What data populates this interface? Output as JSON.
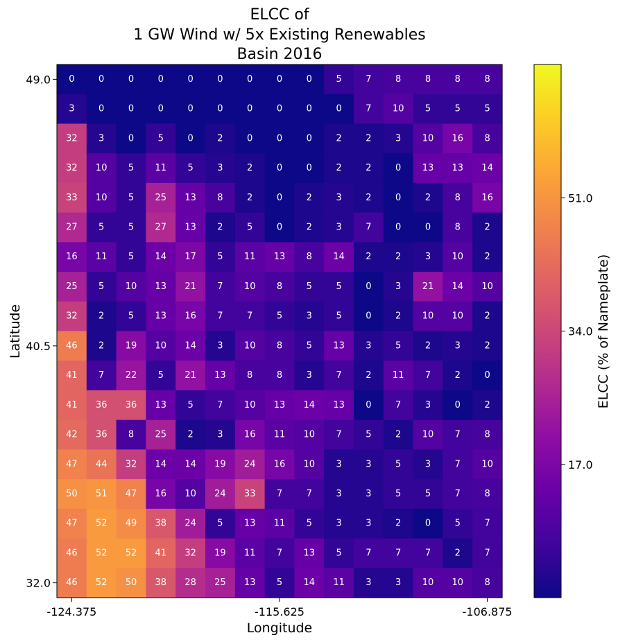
{
  "chart_data": {
    "type": "heatmap",
    "title_lines": [
      "ELCC of",
      "1 GW Wind w/ 5x Existing Renewables",
      "Basin 2016"
    ],
    "xlabel": "Longitude",
    "ylabel": "Latitude",
    "colorbar_label": "ELCC (% of Nameplate)",
    "colormap": "plasma",
    "vmin": 0,
    "vmax": 68,
    "x_ticks": [
      {
        "label": "-124.375",
        "col": 0
      },
      {
        "label": "-115.625",
        "col": 7
      },
      {
        "label": "-106.875",
        "col": 14
      }
    ],
    "y_ticks": [
      {
        "label": "49.0",
        "row": 0
      },
      {
        "label": "40.5",
        "row": 9
      },
      {
        "label": "32.0",
        "row": 17
      }
    ],
    "colorbar_ticks": [
      {
        "label": "17.0",
        "value": 17
      },
      {
        "label": "34.0",
        "value": 34
      },
      {
        "label": "51.0",
        "value": 51
      }
    ],
    "values": [
      [
        0,
        0,
        0,
        0,
        0,
        0,
        0,
        0,
        0,
        5,
        7,
        8,
        8,
        8,
        8
      ],
      [
        3,
        0,
        0,
        0,
        0,
        0,
        0,
        0,
        0,
        0,
        7,
        10,
        5,
        5,
        5
      ],
      [
        32,
        3,
        0,
        5,
        0,
        2,
        0,
        0,
        0,
        2,
        2,
        3,
        10,
        16,
        8
      ],
      [
        32,
        10,
        5,
        11,
        5,
        3,
        2,
        0,
        0,
        2,
        2,
        0,
        13,
        13,
        14
      ],
      [
        33,
        10,
        5,
        25,
        13,
        8,
        2,
        0,
        2,
        3,
        2,
        0,
        2,
        8,
        16
      ],
      [
        27,
        5,
        5,
        27,
        13,
        2,
        5,
        0,
        2,
        3,
        7,
        0,
        0,
        8,
        2
      ],
      [
        16,
        11,
        5,
        14,
        17,
        5,
        11,
        13,
        8,
        14,
        2,
        2,
        3,
        10,
        2
      ],
      [
        25,
        5,
        10,
        13,
        21,
        7,
        10,
        8,
        5,
        5,
        0,
        3,
        21,
        14,
        10
      ],
      [
        32,
        2,
        5,
        13,
        16,
        7,
        7,
        5,
        3,
        5,
        0,
        2,
        10,
        10,
        2
      ],
      [
        46,
        2,
        19,
        10,
        14,
        3,
        10,
        8,
        5,
        13,
        3,
        5,
        2,
        3,
        2
      ],
      [
        41,
        7,
        22,
        5,
        21,
        13,
        8,
        8,
        3,
        7,
        2,
        11,
        7,
        2,
        0
      ],
      [
        41,
        36,
        36,
        13,
        5,
        7,
        10,
        13,
        14,
        13,
        0,
        7,
        3,
        0,
        2
      ],
      [
        42,
        36,
        8,
        25,
        2,
        3,
        16,
        11,
        10,
        7,
        5,
        2,
        10,
        7,
        8
      ],
      [
        47,
        44,
        32,
        14,
        14,
        19,
        24,
        16,
        10,
        3,
        3,
        5,
        3,
        7,
        10
      ],
      [
        50,
        51,
        47,
        16,
        10,
        24,
        33,
        7,
        7,
        3,
        3,
        5,
        5,
        7,
        8
      ],
      [
        47,
        52,
        49,
        38,
        24,
        5,
        13,
        11,
        5,
        3,
        3,
        2,
        0,
        5,
        7
      ],
      [
        46,
        52,
        52,
        41,
        32,
        19,
        11,
        7,
        13,
        5,
        7,
        7,
        7,
        2,
        7
      ],
      [
        46,
        52,
        50,
        38,
        28,
        25,
        13,
        5,
        14,
        11,
        3,
        3,
        10,
        10,
        8
      ]
    ]
  }
}
